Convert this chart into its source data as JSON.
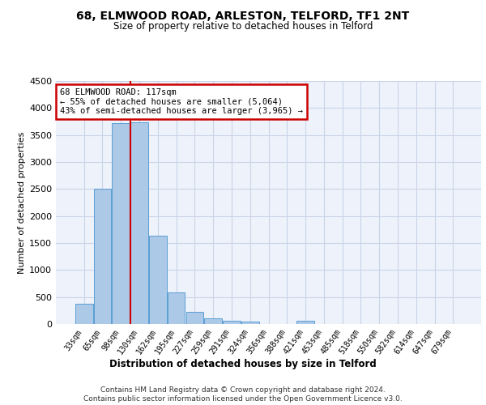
{
  "title1": "68, ELMWOOD ROAD, ARLESTON, TELFORD, TF1 2NT",
  "title2": "Size of property relative to detached houses in Telford",
  "xlabel": "Distribution of detached houses by size in Telford",
  "ylabel": "Number of detached properties",
  "categories": [
    "33sqm",
    "65sqm",
    "98sqm",
    "130sqm",
    "162sqm",
    "195sqm",
    "227sqm",
    "259sqm",
    "291sqm",
    "324sqm",
    "356sqm",
    "388sqm",
    "421sqm",
    "453sqm",
    "485sqm",
    "518sqm",
    "550sqm",
    "582sqm",
    "614sqm",
    "647sqm",
    "679sqm"
  ],
  "values": [
    370,
    2500,
    3720,
    3730,
    1630,
    590,
    225,
    110,
    65,
    40,
    0,
    0,
    65,
    0,
    0,
    0,
    0,
    0,
    0,
    0,
    0
  ],
  "bar_color": "#adc9e8",
  "bar_edge_color": "#5a9fd4",
  "vline_color": "#cc0000",
  "annotation_text": "68 ELMWOOD ROAD: 117sqm\n← 55% of detached houses are smaller (5,064)\n43% of semi-detached houses are larger (3,965) →",
  "annotation_box_color": "#ffffff",
  "annotation_box_edge_color": "#cc0000",
  "ylim": [
    0,
    4500
  ],
  "yticks": [
    0,
    500,
    1000,
    1500,
    2000,
    2500,
    3000,
    3500,
    4000,
    4500
  ],
  "footer_text": "Contains HM Land Registry data © Crown copyright and database right 2024.\nContains public sector information licensed under the Open Government Licence v3.0.",
  "bg_color": "#eef2fa",
  "grid_color": "#c8d4e8",
  "title1_fontsize": 10,
  "title2_fontsize": 8.5
}
